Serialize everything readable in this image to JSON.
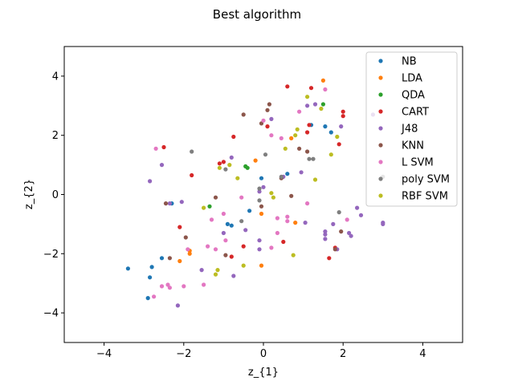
{
  "chart_data": {
    "type": "scatter",
    "title": "Best algorithm",
    "xlabel": "z_{1}",
    "ylabel": "z_{2}",
    "xlim": [
      -5,
      5
    ],
    "ylim": [
      -5,
      5
    ],
    "xticks": [
      -4,
      -2,
      0,
      2,
      4
    ],
    "yticks": [
      -4,
      -2,
      0,
      2,
      4
    ],
    "grid": false,
    "legend_position": "top-right",
    "series": [
      {
        "name": "NB",
        "color": "#1f77b4",
        "points": [
          [
            -3.4,
            -2.5
          ],
          [
            -2.9,
            -3.5
          ],
          [
            -2.85,
            -2.8
          ],
          [
            -2.8,
            -2.45
          ],
          [
            -2.55,
            -2.15
          ],
          [
            -2.3,
            -0.3
          ],
          [
            -0.9,
            -1.0
          ],
          [
            -0.8,
            -1.05
          ],
          [
            -0.35,
            -0.55
          ],
          [
            -0.05,
            0.55
          ],
          [
            0.6,
            0.7
          ],
          [
            1.2,
            2.35
          ],
          [
            1.55,
            2.3
          ],
          [
            1.7,
            2.1
          ]
        ]
      },
      {
        "name": "LDA",
        "color": "#ff7f0e",
        "points": [
          [
            -2.1,
            -2.25
          ],
          [
            -1.85,
            -1.9
          ],
          [
            -1.85,
            -2.0
          ],
          [
            -0.05,
            -2.4
          ],
          [
            -0.05,
            -0.65
          ],
          [
            0.8,
            -0.95
          ],
          [
            1.5,
            3.85
          ],
          [
            0.7,
            1.9
          ],
          [
            -0.2,
            1.15
          ]
        ]
      },
      {
        "name": "QDA",
        "color": "#2ca02c",
        "points": [
          [
            -1.35,
            -0.4
          ],
          [
            -0.4,
            0.9
          ],
          [
            -0.45,
            0.95
          ],
          [
            1.5,
            3.05
          ]
        ]
      },
      {
        "name": "CART",
        "color": "#d62728",
        "points": [
          [
            -2.5,
            1.6
          ],
          [
            -1.8,
            0.65
          ],
          [
            -1.1,
            1.05
          ],
          [
            -1.0,
            1.1
          ],
          [
            -0.75,
            1.95
          ],
          [
            0.1,
            2.3
          ],
          [
            0.6,
            3.65
          ],
          [
            1.2,
            3.6
          ],
          [
            1.15,
            2.35
          ],
          [
            1.1,
            2.1
          ],
          [
            2.0,
            2.8
          ],
          [
            2.0,
            2.65
          ],
          [
            1.9,
            1.7
          ],
          [
            -2.1,
            -1.1
          ],
          [
            -0.8,
            -2.1
          ],
          [
            -0.5,
            -1.75
          ],
          [
            0.5,
            -1.6
          ],
          [
            1.65,
            -2.15
          ],
          [
            1.8,
            -1.8
          ]
        ]
      },
      {
        "name": "J48",
        "color": "#9467bd",
        "points": [
          [
            -2.85,
            0.45
          ],
          [
            -2.55,
            1.0
          ],
          [
            -2.15,
            -3.75
          ],
          [
            -2.35,
            -0.3
          ],
          [
            -0.8,
            1.25
          ],
          [
            0.0,
            0.25
          ],
          [
            -0.1,
            0.1
          ],
          [
            0.2,
            2.55
          ],
          [
            1.1,
            3.0
          ],
          [
            1.3,
            3.05
          ],
          [
            1.95,
            2.3
          ],
          [
            0.5,
            0.6
          ],
          [
            -0.45,
            -1.2
          ],
          [
            -0.1,
            -1.55
          ],
          [
            -0.1,
            -1.85
          ],
          [
            -0.75,
            -2.75
          ],
          [
            -1.55,
            -2.55
          ],
          [
            -1.0,
            -1.3
          ],
          [
            1.55,
            -1.25
          ],
          [
            1.55,
            -1.35
          ],
          [
            1.55,
            -1.5
          ],
          [
            1.75,
            -1.0
          ],
          [
            1.85,
            -1.85
          ],
          [
            2.15,
            -1.3
          ],
          [
            2.2,
            -1.4
          ],
          [
            2.35,
            -0.45
          ],
          [
            2.45,
            -0.7
          ],
          [
            3.0,
            -0.95
          ],
          [
            3.0,
            -1.0
          ],
          [
            2.75,
            2.7
          ],
          [
            -2.05,
            -0.25
          ],
          [
            1.05,
            -0.95
          ],
          [
            0.95,
            0.75
          ]
        ]
      },
      {
        "name": "KNN",
        "color": "#8c564b",
        "points": [
          [
            -2.45,
            -0.3
          ],
          [
            -2.35,
            -2.15
          ],
          [
            -1.95,
            -1.45
          ],
          [
            -1.2,
            -0.1
          ],
          [
            -0.95,
            -2.05
          ],
          [
            -0.5,
            2.7
          ],
          [
            0.1,
            2.85
          ],
          [
            0.15,
            3.05
          ],
          [
            -0.05,
            2.4
          ],
          [
            0.9,
            1.55
          ],
          [
            1.1,
            1.45
          ],
          [
            -0.05,
            -0.4
          ],
          [
            0.45,
            0.55
          ],
          [
            0.7,
            -0.05
          ],
          [
            1.95,
            -1.25
          ],
          [
            1.8,
            -1.85
          ]
        ]
      },
      {
        "name": "L SVM",
        "color": "#e377c2",
        "points": [
          [
            -2.7,
            1.55
          ],
          [
            -2.75,
            -3.45
          ],
          [
            -2.55,
            -3.1
          ],
          [
            -2.4,
            -3.05
          ],
          [
            -2.35,
            -3.15
          ],
          [
            -2.0,
            -3.1
          ],
          [
            -1.5,
            -3.05
          ],
          [
            -1.9,
            -1.85
          ],
          [
            -1.4,
            -1.75
          ],
          [
            -1.2,
            -1.85
          ],
          [
            -0.95,
            -1.55
          ],
          [
            -1.3,
            -0.85
          ],
          [
            -1.0,
            -0.65
          ],
          [
            -0.55,
            -0.1
          ],
          [
            0.35,
            -0.8
          ],
          [
            0.6,
            -0.75
          ],
          [
            0.6,
            -0.9
          ],
          [
            0.45,
            1.9
          ],
          [
            0.2,
            2.0
          ],
          [
            0.0,
            2.5
          ],
          [
            0.9,
            2.8
          ],
          [
            1.55,
            3.55
          ],
          [
            1.1,
            -0.3
          ],
          [
            2.1,
            -0.85
          ],
          [
            0.35,
            -1.3
          ],
          [
            0.2,
            -1.8
          ]
        ]
      },
      {
        "name": "poly SVM",
        "color": "#7f7f7f",
        "points": [
          [
            -1.8,
            1.45
          ],
          [
            -0.95,
            0.85
          ],
          [
            0.05,
            1.35
          ],
          [
            -0.1,
            0.2
          ],
          [
            -0.1,
            -0.2
          ],
          [
            -0.55,
            -0.9
          ],
          [
            0.45,
            0.6
          ],
          [
            1.15,
            1.2
          ],
          [
            1.25,
            1.2
          ],
          [
            1.9,
            -0.6
          ],
          [
            3.0,
            0.6
          ]
        ]
      },
      {
        "name": "RBF SVM",
        "color": "#bcbd22",
        "points": [
          [
            -1.15,
            -2.55
          ],
          [
            -1.2,
            -2.7
          ],
          [
            -1.5,
            -0.45
          ],
          [
            -1.1,
            0.9
          ],
          [
            -0.85,
            1.0
          ],
          [
            -0.65,
            0.55
          ],
          [
            -0.5,
            -2.4
          ],
          [
            0.2,
            0.05
          ],
          [
            0.55,
            1.55
          ],
          [
            0.8,
            2.0
          ],
          [
            0.85,
            2.2
          ],
          [
            1.1,
            3.3
          ],
          [
            1.3,
            0.5
          ],
          [
            1.7,
            1.35
          ],
          [
            1.85,
            1.95
          ],
          [
            1.45,
            2.9
          ],
          [
            0.75,
            -2.05
          ],
          [
            0.25,
            -0.1
          ]
        ]
      }
    ]
  }
}
